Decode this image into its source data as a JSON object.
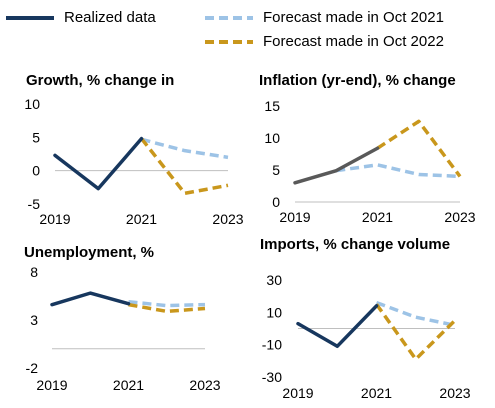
{
  "legend": [
    {
      "label": "Realized data",
      "color": "#17375e",
      "dash": false
    },
    {
      "label": "Forecast made in Oct 2021",
      "color": "#9dc3e6",
      "dash": true
    },
    {
      "label": "Forecast made in Oct 2022",
      "color": "#c9971c",
      "dash": true
    }
  ],
  "colors": {
    "realized": "#17375e",
    "realized_inflation": "#595959",
    "forecast_2021": "#9dc3e6",
    "forecast_2022": "#c9971c"
  },
  "chart_data": [
    {
      "type": "line",
      "title": "Growth, % change in",
      "xlim": [
        2019,
        2023
      ],
      "ylim": [
        -5,
        10
      ],
      "xticks": [
        2019,
        2021,
        2023
      ],
      "yticks": [
        -5,
        0,
        5,
        10
      ],
      "series": [
        {
          "name": "Realized data",
          "x": [
            2019,
            2020,
            2021
          ],
          "y": [
            2.3,
            -2.7,
            4.8
          ]
        },
        {
          "name": "Forecast made in Oct 2021",
          "x": [
            2021,
            2022,
            2023
          ],
          "y": [
            4.7,
            3.0,
            2.0
          ]
        },
        {
          "name": "Forecast made in Oct 2022",
          "x": [
            2021,
            2022,
            2023
          ],
          "y": [
            4.8,
            -3.4,
            -2.2
          ]
        }
      ]
    },
    {
      "type": "line",
      "title": "Inflation (yr-end), % change",
      "xlim": [
        2019,
        2023
      ],
      "ylim": [
        0,
        15
      ],
      "xticks": [
        2019,
        2021,
        2023
      ],
      "yticks": [
        0,
        5,
        10,
        15
      ],
      "series": [
        {
          "name": "Realized data",
          "x": [
            2019,
            2020,
            2021
          ],
          "y": [
            3.0,
            4.9,
            8.4
          ]
        },
        {
          "name": "Forecast made in Oct 2021",
          "x": [
            2020,
            2021,
            2022,
            2023
          ],
          "y": [
            4.9,
            5.8,
            4.3,
            4.0
          ]
        },
        {
          "name": "Forecast made in Oct 2022",
          "x": [
            2021,
            2022,
            2023
          ],
          "y": [
            8.4,
            12.6,
            4.0
          ]
        }
      ]
    },
    {
      "type": "line",
      "title": "Unemployment, %",
      "xlim": [
        2019,
        2023
      ],
      "ylim": [
        -2,
        8
      ],
      "xticks": [
        2019,
        2021,
        2023
      ],
      "yticks": [
        -2,
        3,
        8
      ],
      "series": [
        {
          "name": "Realized data",
          "x": [
            2019,
            2020,
            2021
          ],
          "y": [
            4.6,
            5.8,
            4.7
          ]
        },
        {
          "name": "Forecast made in Oct 2021",
          "x": [
            2021,
            2022,
            2023
          ],
          "y": [
            4.9,
            4.5,
            4.6
          ]
        },
        {
          "name": "Forecast made in Oct 2022",
          "x": [
            2021,
            2022,
            2023
          ],
          "y": [
            4.6,
            3.9,
            4.2
          ]
        }
      ]
    },
    {
      "type": "line",
      "title": "Imports, % change volume",
      "xlim": [
        2019,
        2023
      ],
      "ylim": [
        -30,
        30
      ],
      "xticks": [
        2019,
        2021,
        2023
      ],
      "yticks": [
        -30,
        -10,
        10,
        30
      ],
      "series": [
        {
          "name": "Realized data",
          "x": [
            2019,
            2020,
            2021
          ],
          "y": [
            3.0,
            -11.0,
            14.0
          ]
        },
        {
          "name": "Forecast made in Oct 2021",
          "x": [
            2021,
            2022,
            2023
          ],
          "y": [
            16.0,
            7.0,
            2.0
          ]
        },
        {
          "name": "Forecast made in Oct 2022",
          "x": [
            2021,
            2022,
            2023
          ],
          "y": [
            15.0,
            -19.0,
            5.0
          ]
        }
      ]
    }
  ]
}
